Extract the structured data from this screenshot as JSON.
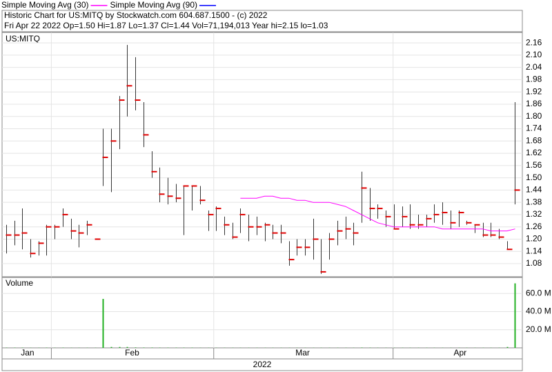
{
  "chart_data": {
    "type": "ohlc",
    "title": "Historic Chart  for US:MITQ by Stockwatch.com 604.687.1500 - (c) 2022",
    "subtitle": "Fri Apr 22 2022  Op=1.50  Hi=1.87  Lo=1.37  Cl=1.44  Vol=71,194,013  Year hi=2.15  lo=1.03",
    "symbol": "US:MITQ",
    "xlim": [
      -0.5,
      63.9
    ],
    "xticks": [
      {
        "value": 2.65,
        "label": "Jan"
      },
      {
        "value": 15.6,
        "label": "Feb"
      },
      {
        "value": 36.7,
        "label": "Mar"
      },
      {
        "value": 56.2,
        "label": "Apr"
      }
    ],
    "xgrid": [
      5.6,
      25.7,
      47.9
    ],
    "year_label": "2022",
    "ylim": [
      1.016,
      2.211
    ],
    "yticks": [
      1.08,
      1.14,
      {
        "value": 1.2,
        "label": "1.20"
      },
      1.26,
      1.32,
      1.38,
      1.44,
      {
        "value": 1.5,
        "label": "1.50"
      },
      1.56,
      1.62,
      1.68,
      1.74,
      {
        "value": 1.8,
        "label": "1.80"
      },
      1.86,
      1.92,
      1.98,
      2.04,
      {
        "value": 2.1,
        "label": "2.10"
      },
      2.16
    ],
    "grid": true,
    "price": {
      "color": "#e00000",
      "high": [
        1.27,
        1.29,
        1.35,
        1.2,
        1.19,
        1.27,
        1.27,
        1.35,
        1.3,
        1.27,
        1.29,
        1.2,
        1.74,
        1.74,
        1.9,
        2.15,
        2.09,
        1.87,
        1.63,
        1.55,
        1.5,
        1.47,
        1.46,
        1.46,
        1.46,
        1.34,
        1.36,
        1.31,
        1.28,
        1.35,
        1.32,
        1.31,
        1.28,
        1.27,
        1.27,
        1.19,
        1.2,
        1.2,
        1.3,
        1.2,
        1.23,
        1.29,
        1.31,
        1.28,
        1.53,
        1.45,
        1.37,
        1.34,
        1.37,
        1.36,
        1.37,
        1.32,
        1.32,
        1.37,
        1.38,
        1.34,
        1.34,
        1.29,
        1.27,
        1.28,
        1.28,
        1.25,
        1.19,
        1.87
      ],
      "low": [
        1.13,
        1.17,
        1.15,
        1.11,
        1.12,
        1.12,
        1.2,
        1.26,
        1.2,
        1.16,
        1.22,
        1.2,
        1.46,
        1.43,
        1.64,
        1.8,
        1.83,
        1.65,
        1.5,
        1.38,
        1.37,
        1.38,
        1.22,
        1.34,
        1.37,
        1.24,
        1.24,
        1.22,
        1.2,
        1.23,
        1.19,
        1.22,
        1.19,
        1.2,
        1.18,
        1.07,
        1.12,
        1.12,
        1.1,
        1.03,
        1.1,
        1.17,
        1.2,
        1.17,
        1.28,
        1.29,
        1.3,
        1.26,
        1.25,
        1.26,
        1.25,
        1.25,
        1.26,
        1.28,
        1.27,
        1.25,
        1.26,
        1.27,
        1.23,
        1.21,
        1.21,
        1.2,
        1.15,
        1.37
      ],
      "close": [
        1.22,
        1.22,
        1.23,
        1.13,
        1.18,
        1.26,
        1.26,
        1.32,
        1.24,
        1.23,
        1.27,
        1.2,
        1.6,
        1.68,
        1.88,
        1.95,
        1.88,
        1.71,
        1.53,
        1.42,
        1.41,
        1.4,
        1.46,
        1.46,
        1.39,
        1.32,
        1.35,
        1.27,
        1.21,
        1.32,
        1.26,
        1.26,
        1.27,
        1.23,
        1.23,
        1.1,
        1.16,
        1.16,
        1.2,
        1.04,
        1.2,
        1.24,
        1.25,
        1.23,
        1.45,
        1.35,
        1.35,
        1.31,
        1.25,
        1.31,
        1.27,
        1.27,
        1.3,
        1.32,
        1.33,
        1.28,
        1.33,
        1.28,
        1.27,
        1.22,
        1.22,
        1.21,
        1.15,
        1.44
      ]
    },
    "series": [
      {
        "name": "Simple Moving Avg (30)",
        "color": "#ff00ff",
        "values": [
          null,
          null,
          null,
          null,
          null,
          null,
          null,
          null,
          null,
          null,
          null,
          null,
          null,
          null,
          null,
          null,
          null,
          null,
          null,
          null,
          null,
          null,
          null,
          null,
          null,
          null,
          null,
          null,
          null,
          1.4,
          1.4,
          1.4,
          1.41,
          1.41,
          1.4,
          1.4,
          1.39,
          1.39,
          1.38,
          1.38,
          1.38,
          1.37,
          1.36,
          1.34,
          1.32,
          1.3,
          1.28,
          1.27,
          1.26,
          1.26,
          1.26,
          1.26,
          1.26,
          1.26,
          1.25,
          1.25,
          1.25,
          1.25,
          1.25,
          1.25,
          1.24,
          1.24,
          1.24,
          1.25
        ]
      },
      {
        "name": "Simple Moving Avg (90)",
        "color": "#0000ff",
        "values": [
          null,
          null,
          null,
          null,
          null,
          null,
          null,
          null,
          null,
          null,
          null,
          null,
          null,
          null,
          null,
          null,
          null,
          null,
          null,
          null,
          null,
          null,
          null,
          null,
          null,
          null,
          null,
          null,
          null,
          null,
          null,
          null,
          null,
          null,
          null,
          null,
          null,
          null,
          null,
          null,
          null,
          null,
          null,
          null,
          null,
          null,
          null,
          null,
          null,
          null,
          null,
          null,
          null,
          null,
          null,
          null,
          null,
          null,
          null,
          null,
          null,
          null,
          null,
          null
        ]
      }
    ],
    "volume": {
      "title": "Volume",
      "color": "#22b022",
      "ylim": [
        0,
        77.7
      ],
      "yticks": [
        {
          "value": 20,
          "label": "20.0 M"
        },
        {
          "value": 40,
          "label": "40.0 M"
        },
        {
          "value": 60,
          "label": "60.0 M"
        }
      ],
      "values": [
        0.3,
        0.3,
        0.3,
        0.2,
        0.2,
        0.3,
        0.2,
        0.3,
        0.2,
        0.2,
        0.2,
        0.2,
        54,
        1.0,
        1.0,
        1.0,
        0.5,
        0.4,
        0.4,
        0.3,
        0.3,
        0.3,
        0.3,
        0.3,
        0.2,
        0.2,
        0.2,
        0.2,
        0.2,
        0.2,
        0.2,
        0.2,
        0.2,
        0.2,
        0.2,
        0.2,
        0.2,
        0.2,
        0.2,
        0.2,
        0.2,
        0.2,
        0.2,
        0.2,
        0.4,
        0.3,
        0.2,
        0.2,
        0.2,
        0.2,
        0.2,
        0.2,
        0.2,
        0.2,
        0.2,
        0.2,
        0.2,
        0.2,
        0.2,
        0.2,
        0.2,
        0.2,
        1.0,
        71.194013
      ]
    }
  }
}
